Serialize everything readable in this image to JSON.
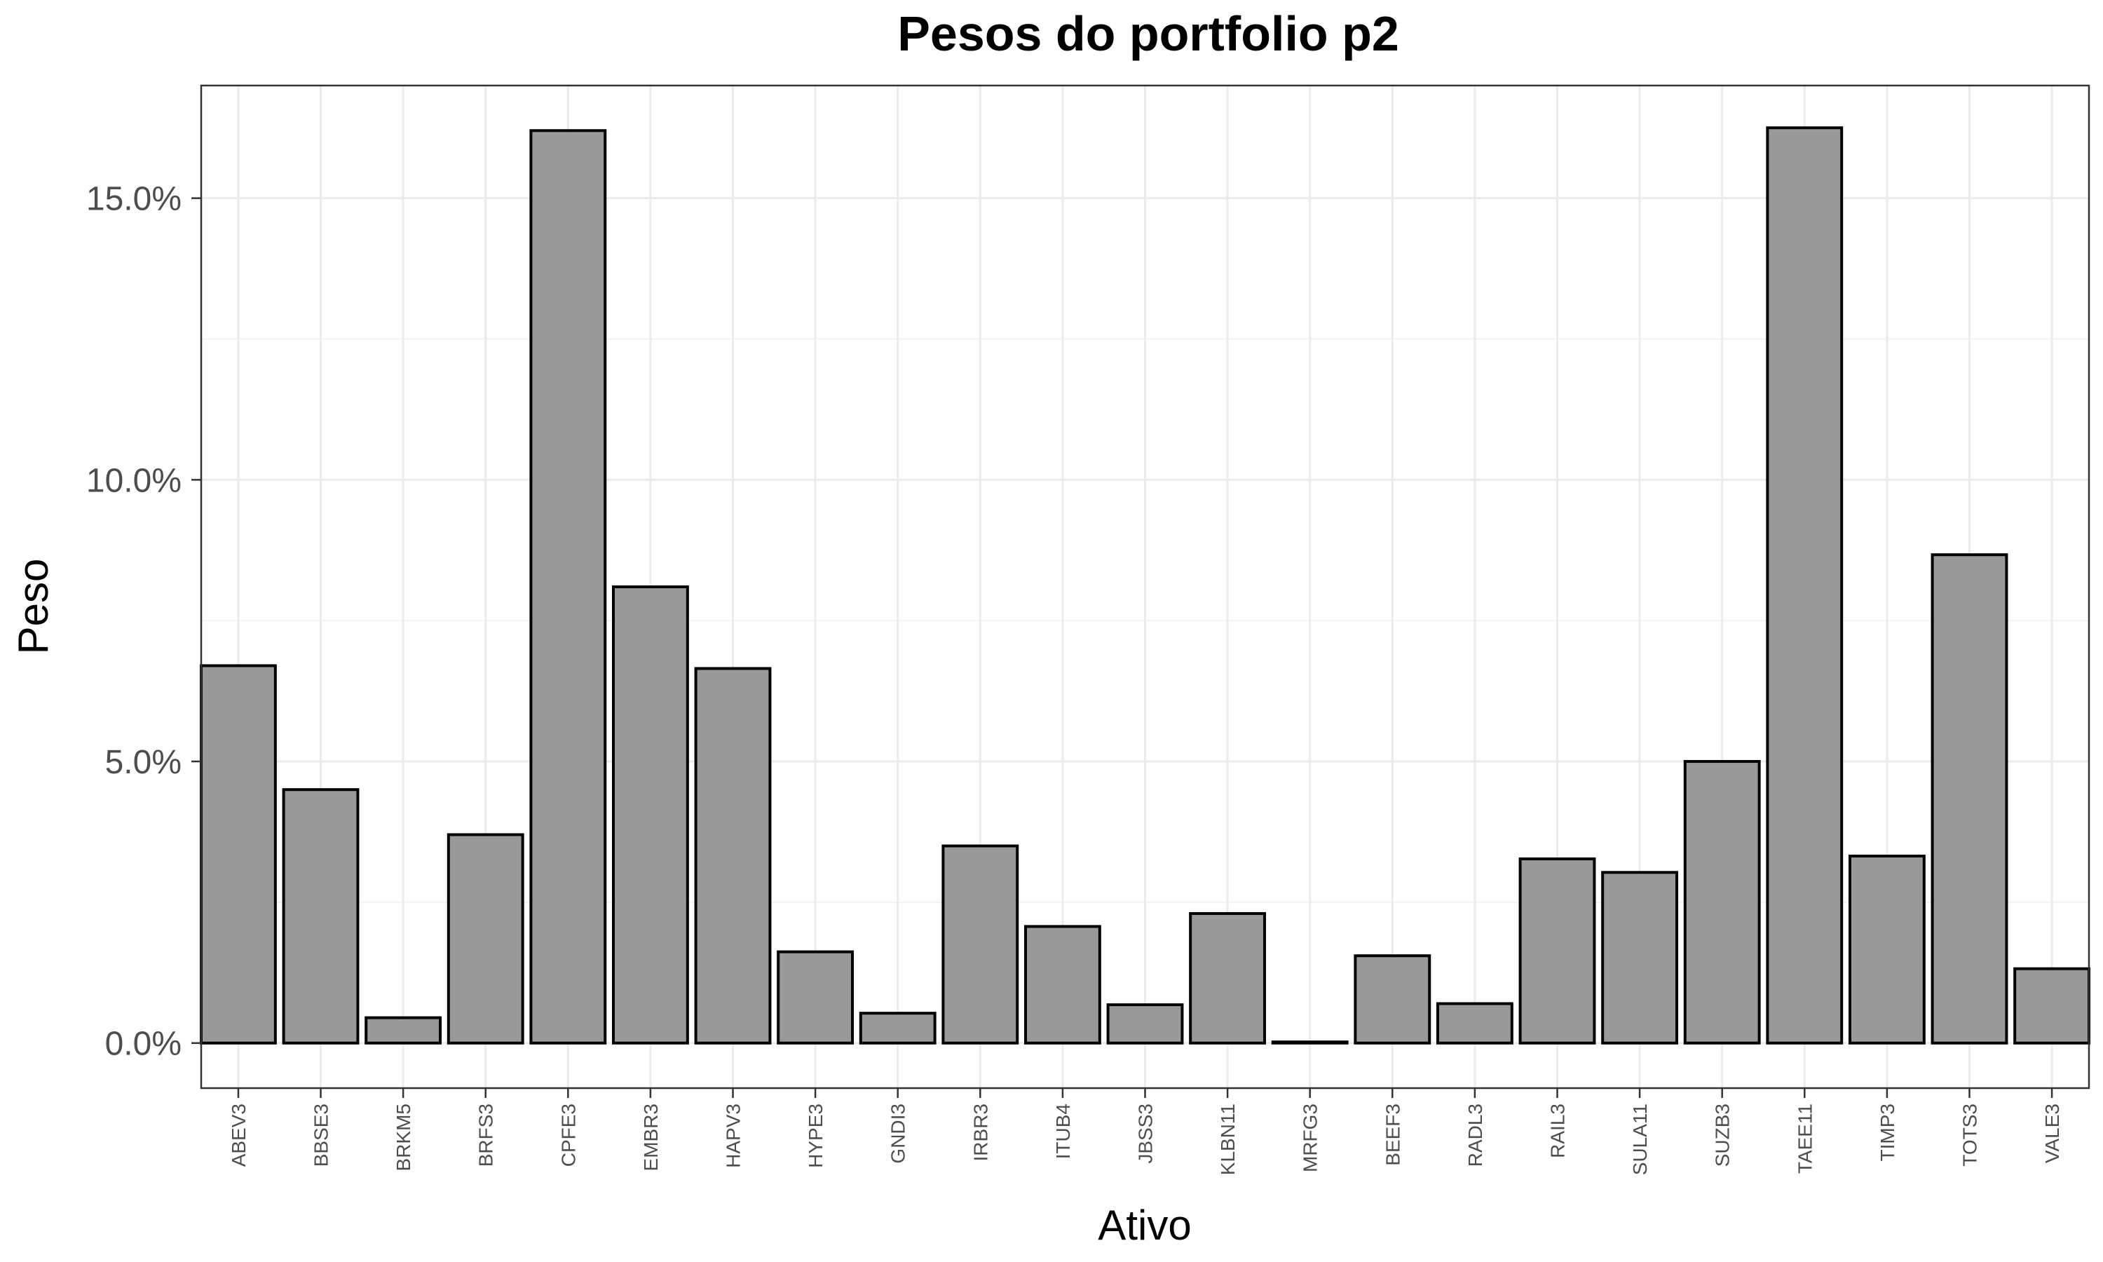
{
  "chart_data": {
    "type": "bar",
    "title": "Pesos do portfolio p2",
    "xlabel": "Ativo",
    "ylabel": "Peso",
    "categories": [
      "ABEV3",
      "BBSE3",
      "BRKM5",
      "BRFS3",
      "CPFE3",
      "EMBR3",
      "HAPV3",
      "HYPE3",
      "GNDI3",
      "IRBR3",
      "ITUB4",
      "JBSS3",
      "KLBN11",
      "MRFG3",
      "BEEF3",
      "RADL3",
      "RAIL3",
      "SULA11",
      "SUZB3",
      "TAEE11",
      "TIMP3",
      "TOTS3",
      "VALE3"
    ],
    "values": [
      6.7,
      4.5,
      0.45,
      3.7,
      16.2,
      8.1,
      6.65,
      1.62,
      0.53,
      3.5,
      2.07,
      0.68,
      2.3,
      0.02,
      1.55,
      0.7,
      3.27,
      3.03,
      5.0,
      16.25,
      3.32,
      8.67,
      1.32
    ],
    "value_unit": "percent",
    "yticks": [
      "0.0%",
      "5.0%",
      "10.0%",
      "15.0%"
    ],
    "ytick_values": [
      0,
      5,
      10,
      15
    ],
    "ylim": [
      -0.8,
      17.0
    ],
    "grid": true,
    "legend": "none",
    "bar_color": "#999999",
    "bar_edge_color": "#000000"
  }
}
